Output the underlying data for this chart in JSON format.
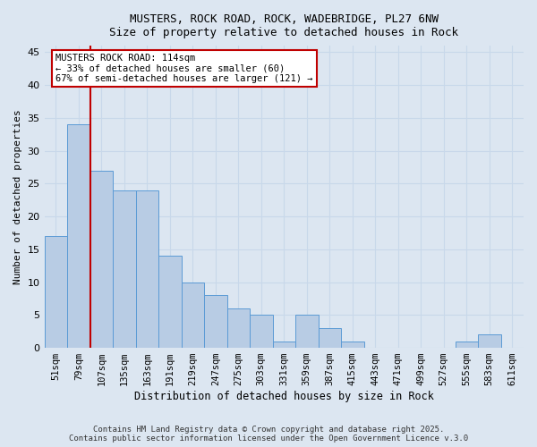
{
  "title_line1": "MUSTERS, ROCK ROAD, ROCK, WADEBRIDGE, PL27 6NW",
  "title_line2": "Size of property relative to detached houses in Rock",
  "categories": [
    "51sqm",
    "79sqm",
    "107sqm",
    "135sqm",
    "163sqm",
    "191sqm",
    "219sqm",
    "247sqm",
    "275sqm",
    "303sqm",
    "331sqm",
    "359sqm",
    "387sqm",
    "415sqm",
    "443sqm",
    "471sqm",
    "499sqm",
    "527sqm",
    "555sqm",
    "583sqm",
    "611sqm"
  ],
  "values": [
    17,
    34,
    27,
    24,
    24,
    14,
    10,
    8,
    6,
    5,
    1,
    5,
    3,
    1,
    0,
    0,
    0,
    0,
    1,
    2,
    0
  ],
  "bar_color": "#b8cce4",
  "bar_edge_color": "#5b9bd5",
  "grid_color": "#c8d8ea",
  "bg_color": "#dce6f1",
  "vline_color": "#c00000",
  "annotation_text": "MUSTERS ROCK ROAD: 114sqm\n← 33% of detached houses are smaller (60)\n67% of semi-detached houses are larger (121) →",
  "annotation_box_color": "#ffffff",
  "annotation_box_edge": "#c00000",
  "xlabel": "Distribution of detached houses by size in Rock",
  "ylabel": "Number of detached properties",
  "ylim": [
    0,
    46
  ],
  "yticks": [
    0,
    5,
    10,
    15,
    20,
    25,
    30,
    35,
    40,
    45
  ],
  "footer_line1": "Contains HM Land Registry data © Crown copyright and database right 2025.",
  "footer_line2": "Contains public sector information licensed under the Open Government Licence v.3.0"
}
